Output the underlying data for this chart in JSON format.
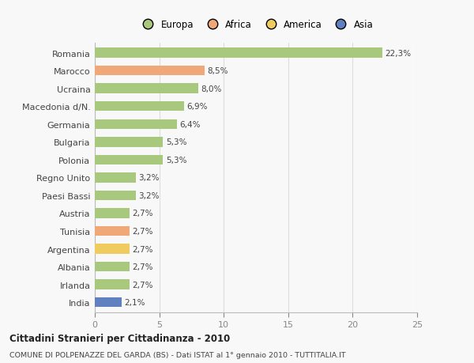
{
  "countries": [
    "Romania",
    "Marocco",
    "Ucraina",
    "Macedonia d/N.",
    "Germania",
    "Bulgaria",
    "Polonia",
    "Regno Unito",
    "Paesi Bassi",
    "Austria",
    "Tunisia",
    "Argentina",
    "Albania",
    "Irlanda",
    "India"
  ],
  "values": [
    22.3,
    8.5,
    8.0,
    6.9,
    6.4,
    5.3,
    5.3,
    3.2,
    3.2,
    2.7,
    2.7,
    2.7,
    2.7,
    2.7,
    2.1
  ],
  "labels": [
    "22,3%",
    "8,5%",
    "8,0%",
    "6,9%",
    "6,4%",
    "5,3%",
    "5,3%",
    "3,2%",
    "3,2%",
    "2,7%",
    "2,7%",
    "2,7%",
    "2,7%",
    "2,7%",
    "2,1%"
  ],
  "colors": [
    "#a8c87e",
    "#f0a878",
    "#a8c87e",
    "#a8c87e",
    "#a8c87e",
    "#a8c87e",
    "#a8c87e",
    "#a8c87e",
    "#a8c87e",
    "#a8c87e",
    "#f0a878",
    "#f0cc60",
    "#a8c87e",
    "#a8c87e",
    "#6080c0"
  ],
  "categories": [
    "Europa",
    "Africa",
    "America",
    "Asia"
  ],
  "legend_colors": [
    "#a8c87e",
    "#f0a878",
    "#f0cc60",
    "#6080c0"
  ],
  "xlim": [
    0,
    25
  ],
  "xticks": [
    0,
    5,
    10,
    15,
    20,
    25
  ],
  "title": "Cittadini Stranieri per Cittadinanza - 2010",
  "subtitle": "COMUNE DI POLPENAZZE DEL GARDA (BS) - Dati ISTAT al 1° gennaio 2010 - TUTTITALIA.IT",
  "background_color": "#f8f8f8",
  "bar_height": 0.55
}
